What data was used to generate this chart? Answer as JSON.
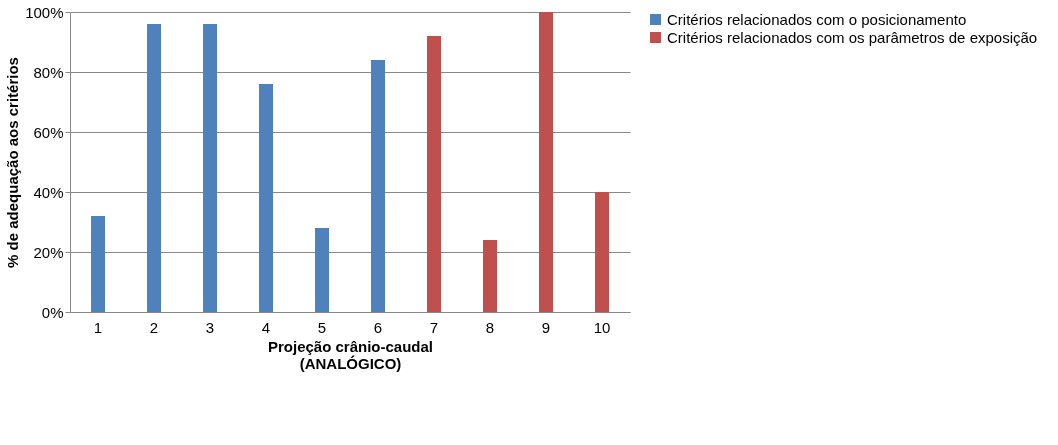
{
  "chart_data": {
    "type": "bar",
    "xlabel": "Projeção crânio-caudal\n(ANALÓGICO)",
    "ylabel": "% de adequação aos critérios",
    "categories": [
      "1",
      "2",
      "3",
      "4",
      "5",
      "6",
      "7",
      "8",
      "9",
      "10"
    ],
    "series": [
      {
        "name": "Critérios relacionados com o posicionamento",
        "color": "#4f81bd",
        "values": [
          32,
          96,
          96,
          76,
          28,
          84,
          null,
          null,
          null,
          null
        ]
      },
      {
        "name": "Critérios relacionados com os parâmetros de exposição",
        "color": "#c0504d",
        "values": [
          null,
          null,
          null,
          null,
          null,
          null,
          92,
          24,
          100,
          40
        ]
      }
    ],
    "ylim": [
      0,
      100
    ],
    "yticks": [
      {
        "value": 0,
        "label": "0%"
      },
      {
        "value": 20,
        "label": "20%"
      },
      {
        "value": 40,
        "label": "40%"
      },
      {
        "value": 60,
        "label": "60%"
      },
      {
        "value": 80,
        "label": "80%"
      },
      {
        "value": 100,
        "label": "100%"
      }
    ],
    "grid": "y",
    "legend": "right"
  }
}
